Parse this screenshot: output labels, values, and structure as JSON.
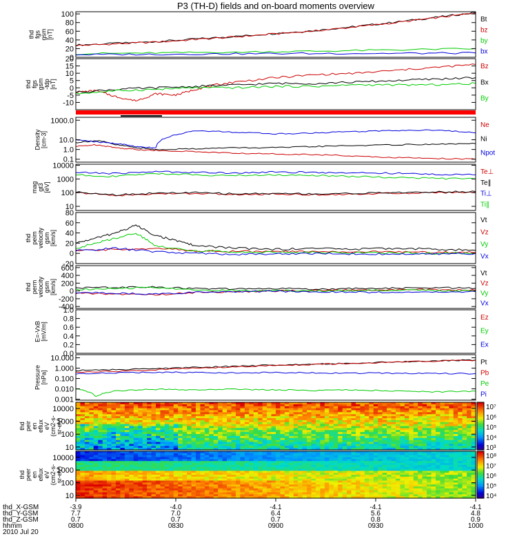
{
  "title": "P3 (TH-D) fields and on-board moments overview",
  "colors": {
    "black": "#000000",
    "red": "#cc0000",
    "green": "#00cc00",
    "blue": "#0000dd",
    "bar_red": "#ff0000"
  },
  "chart_data": [
    {
      "type": "line",
      "ylabel": [
        "thd",
        "fgs",
        "gsm",
        "[nT]"
      ],
      "ylim": [
        0,
        105
      ],
      "yticks": [
        "100",
        "80",
        "60",
        "40",
        "20",
        "0"
      ],
      "ytick_values": [
        100,
        80,
        60,
        40,
        20,
        0
      ],
      "series": [
        {
          "name": "Bt",
          "color": "#000000",
          "x": [
            0,
            0.1,
            0.2,
            0.3,
            0.4,
            0.5,
            0.6,
            0.7,
            0.8,
            0.9,
            1.0
          ],
          "values": [
            28,
            32,
            36,
            42,
            48,
            55,
            62,
            71,
            81,
            92,
            103
          ]
        },
        {
          "name": "bz",
          "color": "#cc0000",
          "x": [
            0,
            0.1,
            0.2,
            0.3,
            0.4,
            0.5,
            0.6,
            0.7,
            0.8,
            0.9,
            1.0
          ],
          "values": [
            27,
            31,
            35,
            41,
            47,
            54,
            61,
            70,
            80,
            91,
            102
          ]
        },
        {
          "name": "by",
          "color": "#00cc00",
          "x": [
            0,
            0.2,
            0.4,
            0.6,
            0.8,
            1.0
          ],
          "values": [
            8,
            10,
            12,
            14,
            17,
            20
          ]
        },
        {
          "name": "bx",
          "color": "#0000dd",
          "x": [
            0,
            0.2,
            0.4,
            0.6,
            0.8,
            1.0
          ],
          "values": [
            6,
            7,
            8,
            9,
            9,
            10
          ]
        }
      ]
    },
    {
      "type": "line",
      "ylabel": [
        "thd",
        "fgs",
        "gsm",
        "-tdp",
        "[nT]"
      ],
      "ylim": [
        -15,
        20
      ],
      "yticks": [
        "20",
        "15",
        "10",
        "5",
        "0",
        "-5",
        "-10"
      ],
      "ytick_values": [
        20,
        15,
        10,
        5,
        0,
        -5,
        -10
      ],
      "series": [
        {
          "name": "Bz",
          "color": "#cc0000",
          "x": [
            0,
            0.05,
            0.1,
            0.15,
            0.2,
            0.25,
            0.3,
            0.35,
            0.4,
            0.5,
            0.6,
            0.7,
            0.8,
            0.9,
            1.0
          ],
          "values": [
            -3,
            -2,
            -6,
            -9,
            -4,
            -5,
            -1,
            2,
            4,
            7,
            9,
            10,
            12,
            14,
            16
          ]
        },
        {
          "name": "Bx",
          "color": "#000000",
          "x": [
            0,
            0.1,
            0.2,
            0.3,
            0.4,
            0.5,
            0.6,
            0.7,
            0.8,
            0.9,
            1.0
          ],
          "values": [
            -3,
            -1,
            0,
            1,
            2,
            3,
            3,
            4,
            5,
            6,
            7
          ]
        },
        {
          "name": "By",
          "color": "#00cc00",
          "x": [
            0,
            0.1,
            0.2,
            0.3,
            0.4,
            0.5,
            0.6,
            0.7,
            0.8,
            0.9,
            1.0
          ],
          "values": [
            -4,
            -2,
            -1,
            0,
            0,
            1,
            1,
            2,
            2,
            2,
            3
          ]
        }
      ]
    },
    {
      "type": "line",
      "ylabel": [
        "Density",
        "[cm-3]"
      ],
      "yscale": "log",
      "ylim": [
        0.05,
        2000
      ],
      "yticks": [
        "1000.0",
        "10.0",
        "1.0",
        "0.1"
      ],
      "ytick_values": [
        1000,
        10,
        1,
        0.1
      ],
      "series": [
        {
          "name": "Ne",
          "color": "#cc0000",
          "x": [
            0,
            0.05,
            0.1,
            0.15,
            0.2,
            0.3,
            0.4,
            0.5,
            0.6,
            0.7,
            0.8,
            0.9,
            1.0
          ],
          "values": [
            2,
            3,
            1.5,
            1,
            0.8,
            0.6,
            0.4,
            0.35,
            0.3,
            0.2,
            0.15,
            0.12,
            0.1
          ]
        },
        {
          "name": "Ni",
          "color": "#000000",
          "x": [
            0,
            0.05,
            0.1,
            0.15,
            0.2,
            0.3,
            0.4,
            0.5,
            0.6,
            0.7,
            0.8,
            0.9,
            1.0
          ],
          "values": [
            5,
            8,
            3,
            1.5,
            1,
            1.2,
            1.5,
            1.5,
            2,
            2.5,
            3,
            3.5,
            4
          ]
        },
        {
          "name": "Npot",
          "color": "#0000dd",
          "x": [
            0,
            0.05,
            0.1,
            0.15,
            0.2,
            0.25,
            0.3,
            0.4,
            0.5,
            0.6,
            0.7,
            0.8,
            0.9,
            1.0
          ],
          "values": [
            10,
            6,
            4,
            2,
            1.5,
            30,
            80,
            60,
            40,
            50,
            70,
            90,
            100,
            50
          ]
        }
      ]
    },
    {
      "type": "line",
      "ylabel": [
        "mag",
        "gt3",
        "[eV]"
      ],
      "yscale": "log",
      "ylim": [
        5,
        12000
      ],
      "yticks": [
        "10000",
        "1000",
        "100",
        "10"
      ],
      "ytick_values": [
        10000,
        1000,
        100,
        10
      ],
      "series": [
        {
          "name": "Te⊥",
          "color": "#cc0000",
          "x": [
            0,
            0.1,
            0.2,
            0.3,
            0.4,
            0.5,
            0.6,
            0.7,
            0.8,
            0.9,
            1.0
          ],
          "values": [
            100,
            60,
            80,
            90,
            70,
            80,
            70,
            80,
            90,
            100,
            110
          ]
        },
        {
          "name": "Te∥",
          "color": "#000000",
          "x": [
            0,
            0.1,
            0.2,
            0.3,
            0.4,
            0.5,
            0.6,
            0.7,
            0.8,
            0.9,
            1.0
          ],
          "values": [
            110,
            70,
            90,
            100,
            80,
            90,
            80,
            90,
            100,
            110,
            120
          ]
        },
        {
          "name": "Ti⊥",
          "color": "#0000dd",
          "x": [
            0,
            0.1,
            0.2,
            0.3,
            0.4,
            0.5,
            0.6,
            0.7,
            0.8,
            0.9,
            1.0
          ],
          "values": [
            3000,
            2500,
            3500,
            3000,
            2800,
            3200,
            3000,
            2800,
            2600,
            2200,
            2000
          ]
        },
        {
          "name": "Ti∥",
          "color": "#00cc00",
          "x": [
            0,
            0.1,
            0.2,
            0.3,
            0.4,
            0.5,
            0.6,
            0.7,
            0.8,
            0.9,
            1.0
          ],
          "values": [
            2000,
            1500,
            2500,
            2000,
            1800,
            2000,
            1800,
            1500,
            1300,
            1100,
            1000
          ]
        }
      ]
    },
    {
      "type": "line",
      "ylabel": [
        "thd",
        "peim",
        "velocity",
        "gsm",
        "[km/s]"
      ],
      "ylim": [
        -20,
        80
      ],
      "yticks": [
        "80",
        "60",
        "40",
        "20",
        "0",
        "-20"
      ],
      "ytick_values": [
        80,
        60,
        40,
        20,
        0,
        -20
      ],
      "series": [
        {
          "name": "Vt",
          "color": "#000000",
          "x": [
            0,
            0.05,
            0.1,
            0.15,
            0.2,
            0.25,
            0.3,
            0.4,
            0.5,
            0.6,
            0.7,
            0.8,
            0.9,
            1.0
          ],
          "values": [
            20,
            30,
            40,
            55,
            35,
            25,
            15,
            10,
            8,
            10,
            8,
            10,
            8,
            6
          ]
        },
        {
          "name": "Vz",
          "color": "#cc0000",
          "x": [
            0,
            0.1,
            0.2,
            0.3,
            0.4,
            0.5,
            0.6,
            0.7,
            0.8,
            0.9,
            1.0
          ],
          "values": [
            5,
            8,
            10,
            5,
            4,
            3,
            4,
            3,
            3,
            2,
            2
          ]
        },
        {
          "name": "Vy",
          "color": "#00cc00",
          "x": [
            0,
            0.05,
            0.1,
            0.15,
            0.2,
            0.3,
            0.4,
            0.5,
            0.6,
            0.7,
            0.8,
            0.9,
            1.0
          ],
          "values": [
            10,
            20,
            30,
            40,
            15,
            5,
            3,
            2,
            2,
            1,
            1,
            0,
            0
          ]
        },
        {
          "name": "Vx",
          "color": "#0000dd",
          "x": [
            0,
            0.1,
            0.2,
            0.3,
            0.4,
            0.5,
            0.6,
            0.7,
            0.8,
            0.9,
            1.0
          ],
          "values": [
            5,
            10,
            3,
            0,
            -2,
            -1,
            0,
            -1,
            -2,
            -1,
            0
          ]
        }
      ]
    },
    {
      "type": "line",
      "ylabel": [
        "thd",
        "perm",
        "velocity",
        "gsm",
        "[km/s]"
      ],
      "ylim": [
        -450,
        650
      ],
      "yticks": [
        "600",
        "400",
        "200",
        "0",
        "-200",
        "-400"
      ],
      "ytick_values": [
        600,
        400,
        200,
        0,
        -200,
        -400
      ],
      "series": [
        {
          "name": "Vt",
          "color": "#000000",
          "x": [
            0,
            0.1,
            0.2,
            0.3,
            0.4,
            0.5,
            0.6,
            0.7,
            0.8,
            0.9,
            1.0
          ],
          "values": [
            80,
            90,
            100,
            60,
            50,
            60,
            50,
            60,
            70,
            80,
            70
          ]
        },
        {
          "name": "Vz",
          "color": "#cc0000",
          "x": [
            0,
            0.1,
            0.2,
            0.3,
            0.4,
            0.5,
            0.6,
            0.7,
            0.8,
            0.9,
            1.0
          ],
          "values": [
            -60,
            -80,
            -100,
            -40,
            -20,
            0,
            10,
            20,
            30,
            30,
            20
          ]
        },
        {
          "name": "Vy",
          "color": "#00cc00",
          "x": [
            0,
            0.1,
            0.2,
            0.3,
            0.4,
            0.5,
            0.6,
            0.7,
            0.8,
            0.9,
            1.0
          ],
          "values": [
            40,
            60,
            90,
            30,
            10,
            0,
            0,
            10,
            20,
            10,
            0
          ]
        },
        {
          "name": "Vx",
          "color": "#0000dd",
          "x": [
            0,
            0.1,
            0.2,
            0.3,
            0.4,
            0.5,
            0.6,
            0.7,
            0.8,
            0.9,
            1.0
          ],
          "values": [
            -40,
            -60,
            -80,
            -40,
            -20,
            -10,
            -20,
            -30,
            -40,
            -30,
            -20
          ]
        }
      ]
    },
    {
      "type": "line",
      "ylabel": [
        "E=-VxB",
        "[mV/m]"
      ],
      "ylim": [
        0,
        1
      ],
      "yticks": [
        "1.0",
        "0.8",
        "0.6",
        "0.4",
        "0.2",
        "0.0"
      ],
      "ytick_values": [
        1.0,
        0.8,
        0.6,
        0.4,
        0.2,
        0.0
      ],
      "series": [
        {
          "name": "Ez",
          "color": "#cc0000",
          "x": [],
          "values": []
        },
        {
          "name": "Ey",
          "color": "#00cc00",
          "x": [],
          "values": []
        },
        {
          "name": "Ex",
          "color": "#0000dd",
          "x": [],
          "values": []
        }
      ]
    },
    {
      "type": "line",
      "ylabel": [
        "Pressure",
        "[nPa]"
      ],
      "yscale": "log",
      "ylim": [
        0.0008,
        20
      ],
      "yticks": [
        "10.000",
        "1.000",
        "0.100",
        "0.010",
        "0.001"
      ],
      "ytick_values": [
        10,
        1,
        0.1,
        0.01,
        0.001
      ],
      "series": [
        {
          "name": "Pt",
          "color": "#000000",
          "x": [
            0,
            0.1,
            0.2,
            0.3,
            0.4,
            0.5,
            0.6,
            0.7,
            0.8,
            0.9,
            1.0
          ],
          "values": [
            0.6,
            0.7,
            0.9,
            1.2,
            1.5,
            2,
            2.5,
            3,
            4,
            5,
            6
          ]
        },
        {
          "name": "Pb",
          "color": "#cc0000",
          "x": [
            0,
            0.1,
            0.2,
            0.3,
            0.4,
            0.5,
            0.6,
            0.7,
            0.8,
            0.9,
            1.0
          ],
          "values": [
            0.4,
            0.5,
            0.7,
            1,
            1.3,
            1.8,
            2.3,
            2.8,
            3.7,
            4.8,
            5.8
          ]
        },
        {
          "name": "Pe",
          "color": "#00cc00",
          "x": [
            0,
            0.05,
            0.1,
            0.2,
            0.3,
            0.4,
            0.5,
            0.6,
            0.7,
            0.8,
            0.9,
            1.0
          ],
          "values": [
            0.01,
            0.002,
            0.006,
            0.009,
            0.008,
            0.009,
            0.008,
            0.007,
            0.008,
            0.006,
            0.005,
            0.006
          ]
        },
        {
          "name": "Pi",
          "color": "#0000dd",
          "x": [
            0,
            0.1,
            0.2,
            0.3,
            0.4,
            0.5,
            0.6,
            0.7,
            0.8,
            0.9,
            1.0
          ],
          "values": [
            0.3,
            0.35,
            0.4,
            0.38,
            0.35,
            0.37,
            0.35,
            0.33,
            0.32,
            0.3,
            0.3
          ]
        }
      ]
    },
    {
      "type": "heatmap",
      "ylabel": [
        "thd",
        "peir",
        "en",
        "eflux",
        "eV",
        "(cm2-s-",
        "sr-eV)"
      ],
      "yscale": "log",
      "ylim": [
        6,
        30000
      ],
      "yticks": [
        "10000",
        "1000",
        "100",
        "10"
      ],
      "ytick_values": [
        10000,
        1000,
        100,
        10
      ],
      "colorbar_ticks": [
        "10⁷",
        "10⁶",
        "10⁵",
        "10⁴",
        "10³"
      ]
    },
    {
      "type": "heatmap",
      "ylabel": [
        "thd",
        "peer",
        "en",
        "eflux",
        "eV",
        "(cm2-s-",
        "sr-eV)"
      ],
      "yscale": "log",
      "ylim": [
        6,
        30000
      ],
      "yticks": [
        "10000",
        "1000",
        "100",
        "10"
      ],
      "ytick_values": [
        10000,
        1000,
        100,
        10
      ],
      "colorbar_ticks": [
        "10⁸",
        "10⁷",
        "10⁶",
        "10⁵",
        "10⁴"
      ]
    }
  ],
  "xaxis": {
    "rows": [
      {
        "label": "thd_X-GSM",
        "values": [
          "-3.9",
          "-4.0",
          "-4.1",
          "-4.1",
          "-4.1"
        ]
      },
      {
        "label": "thd_Y-GSM",
        "values": [
          "7.7",
          "7.0",
          "6.4",
          "5.6",
          "4.8"
        ]
      },
      {
        "label": "thd_Z-GSM",
        "values": [
          "0.7",
          "0.7",
          "0.7",
          "0.8",
          "0.9"
        ]
      },
      {
        "label": "hhmm",
        "values": [
          "0800",
          "0830",
          "0900",
          "0930",
          "1000"
        ]
      }
    ],
    "date": "2010 Jul 20"
  }
}
